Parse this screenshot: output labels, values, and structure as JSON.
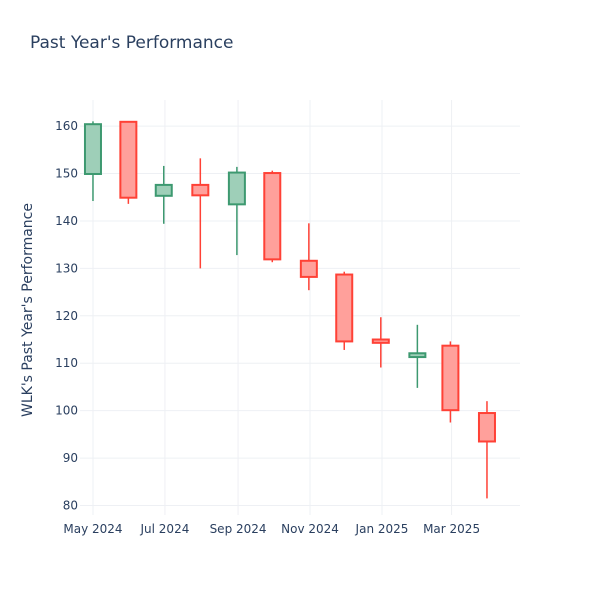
{
  "chart_data": {
    "type": "candlestick",
    "title": "Past Year's Performance",
    "xlabel": "",
    "ylabel": "WLK's Past Year's Performance",
    "ylim": [
      78,
      165.5
    ],
    "grid": true,
    "legend": "none",
    "x_ticks": [
      {
        "date": "2024-05-01",
        "label": "May 2024"
      },
      {
        "date": "2024-07-01",
        "label": "Jul 2024"
      },
      {
        "date": "2024-09-01",
        "label": "Sep 2024"
      },
      {
        "date": "2024-11-01",
        "label": "Nov 2024"
      },
      {
        "date": "2025-01-01",
        "label": "Jan 2025"
      },
      {
        "date": "2025-03-01",
        "label": "Mar 2025"
      }
    ],
    "y_ticks": [
      80,
      90,
      100,
      110,
      120,
      130,
      140,
      150,
      160
    ],
    "xlim": [
      "2024-04-20",
      "2025-04-28"
    ],
    "colors": {
      "up": "#3d9970",
      "up_fill": "#9ecfb8",
      "down": "#ff4136",
      "down_fill": "#ffa09b",
      "grid": "#eef0f4",
      "text": "#2a3f5f"
    },
    "candles": [
      {
        "date": "2024-05-01",
        "open": 149.9,
        "high": 161.0,
        "low": 144.2,
        "close": 160.4
      },
      {
        "date": "2024-05-31",
        "open": 160.9,
        "high": 161.0,
        "low": 143.6,
        "close": 144.9
      },
      {
        "date": "2024-06-30",
        "open": 145.3,
        "high": 151.6,
        "low": 139.4,
        "close": 147.6
      },
      {
        "date": "2024-07-31",
        "open": 147.6,
        "high": 153.2,
        "low": 130.0,
        "close": 145.4
      },
      {
        "date": "2024-08-31",
        "open": 143.5,
        "high": 151.4,
        "low": 132.8,
        "close": 150.2
      },
      {
        "date": "2024-09-30",
        "open": 150.1,
        "high": 150.6,
        "low": 131.3,
        "close": 131.9
      },
      {
        "date": "2024-10-31",
        "open": 131.6,
        "high": 139.5,
        "low": 125.4,
        "close": 128.2
      },
      {
        "date": "2024-11-30",
        "open": 128.7,
        "high": 129.3,
        "low": 112.8,
        "close": 114.6
      },
      {
        "date": "2024-12-31",
        "open": 115.0,
        "high": 119.7,
        "low": 109.1,
        "close": 114.3
      },
      {
        "date": "2025-01-31",
        "open": 111.3,
        "high": 118.1,
        "low": 104.8,
        "close": 112.1
      },
      {
        "date": "2025-02-28",
        "open": 113.7,
        "high": 114.6,
        "low": 97.5,
        "close": 100.1
      },
      {
        "date": "2025-03-31",
        "open": 99.5,
        "high": 102.0,
        "low": 81.5,
        "close": 93.5
      }
    ]
  }
}
